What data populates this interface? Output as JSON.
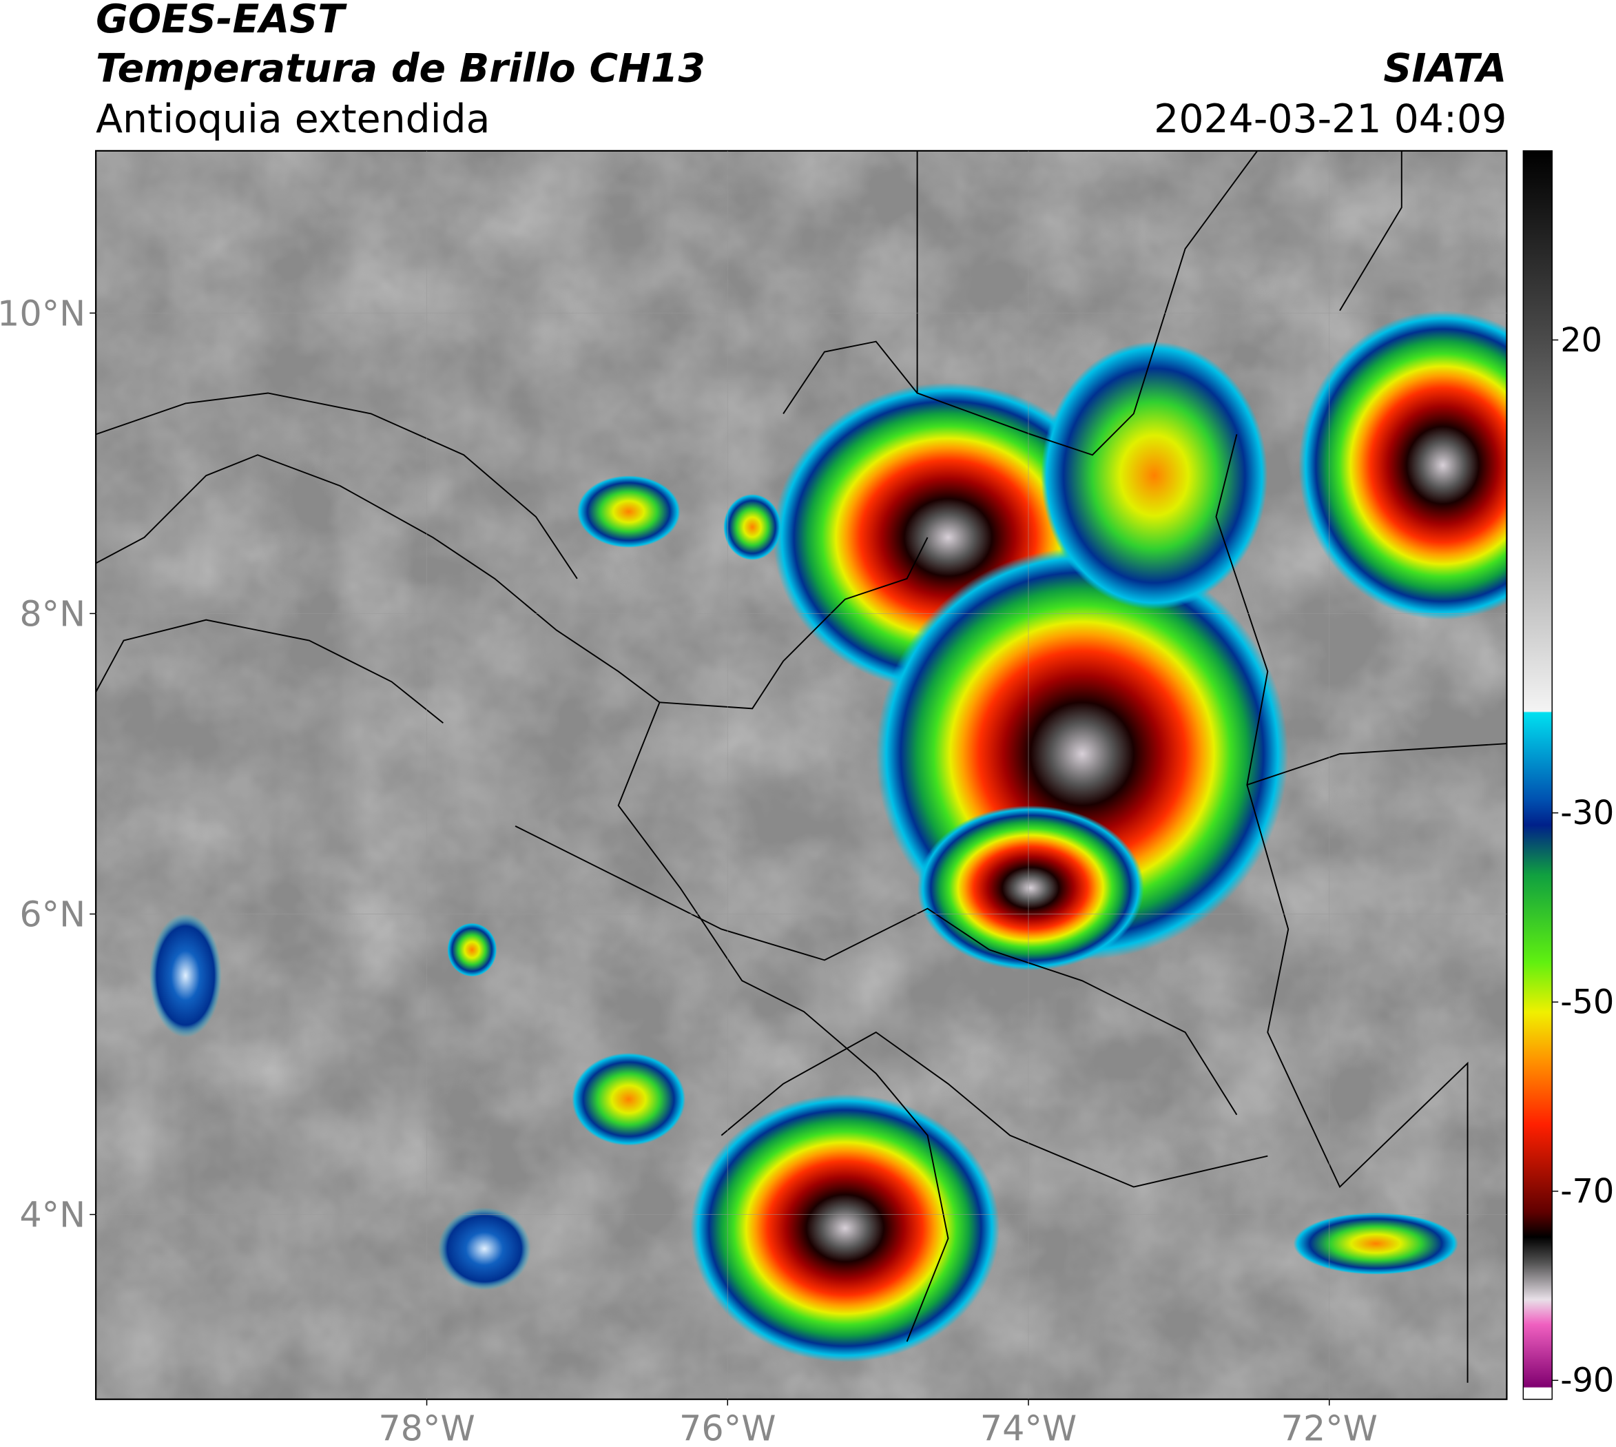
{
  "header": {
    "title": "GOES-EAST",
    "subtitle": "Temperatura de Brillo CH13",
    "region": "Antioquia extendida",
    "source": "SIATA",
    "datetime": "2024-03-21 04:09"
  },
  "map": {
    "xlim": [
      -80.2,
      -70.82
    ],
    "ylim": [
      2.77,
      11.08
    ],
    "xticks": [
      {
        "value": -78,
        "label": "78°W"
      },
      {
        "value": -76,
        "label": "76°W"
      },
      {
        "value": -74,
        "label": "74°W"
      },
      {
        "value": -72,
        "label": "72°W"
      }
    ],
    "yticks": [
      {
        "value": 10,
        "label": "10°N"
      },
      {
        "value": 8,
        "label": "8°N"
      },
      {
        "value": 6,
        "label": "6°N"
      },
      {
        "value": 4,
        "label": "4°N"
      }
    ],
    "grid": true
  },
  "colorbar": {
    "lim": [
      -92,
      40
    ],
    "ticks": [
      20,
      -30,
      -50,
      -70,
      -90
    ]
  }
}
